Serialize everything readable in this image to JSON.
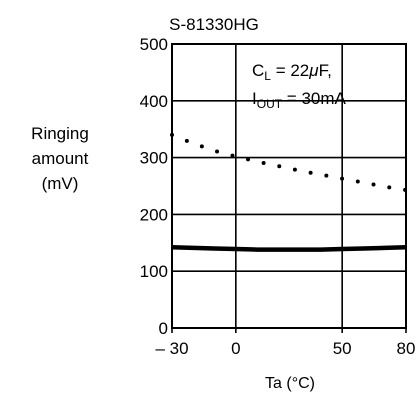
{
  "chart_data": {
    "type": "line",
    "title": "S-81330HG",
    "ylabel": [
      "Ringing",
      "amount",
      "(mV)"
    ],
    "xlabel": "Ta (°C)",
    "xlim": [
      -30,
      80
    ],
    "ylim": [
      0,
      500
    ],
    "x_ticks": [
      -30,
      0,
      50,
      80
    ],
    "x_tick_labels": [
      "– 30",
      "0",
      "50",
      "80"
    ],
    "y_ticks": [
      0,
      100,
      200,
      300,
      400,
      500
    ],
    "grid": true,
    "annotation": {
      "line1": {
        "main": "C",
        "sub": "L",
        "rest": " = 22",
        "unit_greek": "μ",
        "unit": "F,"
      },
      "line2": {
        "main": "I",
        "sub": "OUT",
        "rest": " = 30mA"
      }
    },
    "series": [
      {
        "style": "dotted",
        "x": [
          -30,
          -20,
          -10,
          0,
          10,
          20,
          30,
          40,
          50,
          60,
          70,
          80
        ],
        "y": [
          340,
          325,
          312,
          302,
          293,
          285,
          277,
          270,
          263,
          256,
          249,
          243
        ]
      },
      {
        "style": "solid-thick",
        "x": [
          -30,
          -20,
          -10,
          0,
          10,
          20,
          30,
          40,
          50,
          60,
          70,
          80
        ],
        "y": [
          142,
          141,
          140,
          139,
          138,
          138,
          138,
          138,
          139,
          140,
          141,
          142
        ]
      }
    ]
  }
}
